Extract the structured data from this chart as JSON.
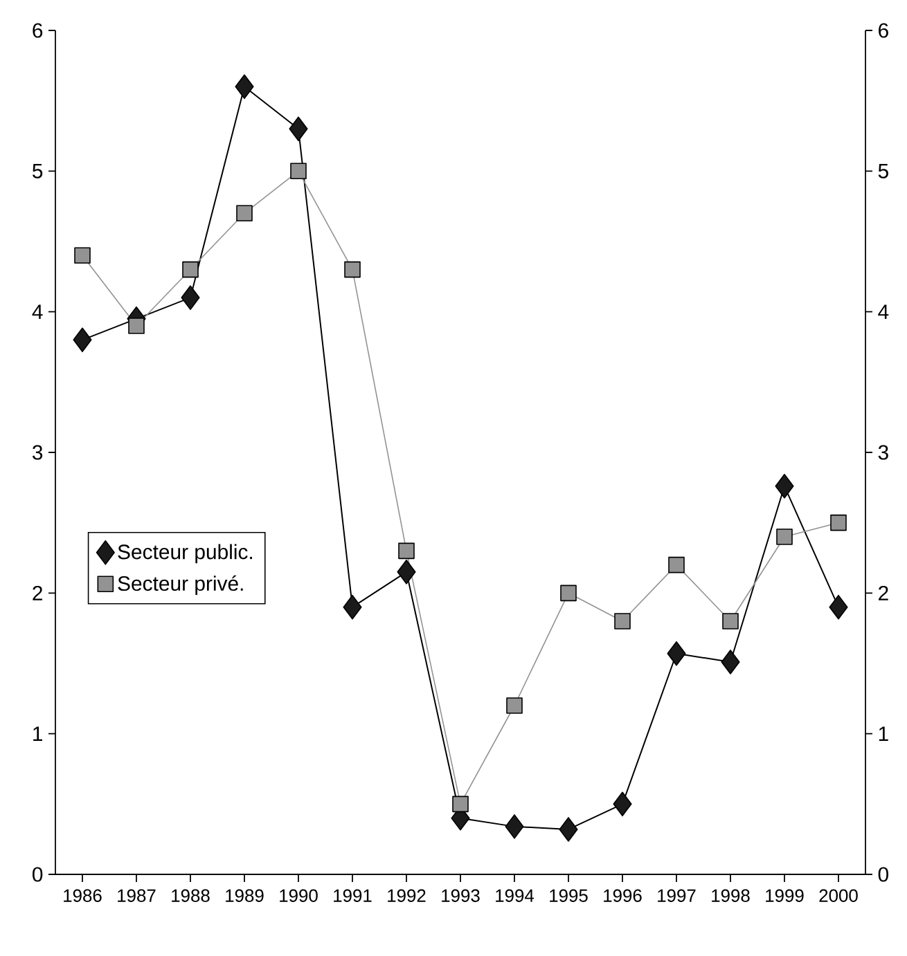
{
  "chart_data": {
    "type": "line",
    "xlim": [
      1985.5,
      2000.5
    ],
    "ylim": [
      0,
      6
    ],
    "y2lim": [
      0,
      6
    ],
    "xticks": [
      1986,
      1987,
      1988,
      1989,
      1990,
      1991,
      1992,
      1993,
      1994,
      1995,
      1996,
      1997,
      1998,
      1999,
      2000
    ],
    "yticks": [
      0,
      1,
      2,
      3,
      4,
      5,
      6
    ],
    "y2ticks": [
      0,
      1,
      2,
      3,
      4,
      5,
      6
    ],
    "x": [
      1986,
      1987,
      1988,
      1989,
      1990,
      1991,
      1992,
      1993,
      1994,
      1995,
      1996,
      1997,
      1998,
      1999,
      2000
    ],
    "series": [
      {
        "name": "Secteur public.",
        "color": "#1a1a1a",
        "marker": "diamond",
        "values": [
          3.8,
          3.95,
          4.1,
          5.6,
          5.3,
          1.9,
          2.15,
          0.4,
          0.34,
          0.32,
          0.5,
          1.57,
          1.51,
          2.76,
          1.9
        ]
      },
      {
        "name": "Secteur privé.",
        "color": "#939393",
        "marker": "square",
        "values": [
          4.4,
          3.9,
          4.3,
          4.7,
          5.0,
          4.3,
          2.3,
          0.5,
          1.2,
          2.0,
          1.8,
          2.2,
          1.8,
          2.4,
          2.5
        ]
      }
    ],
    "legend": "left",
    "grid": false,
    "line_style": "solid"
  }
}
